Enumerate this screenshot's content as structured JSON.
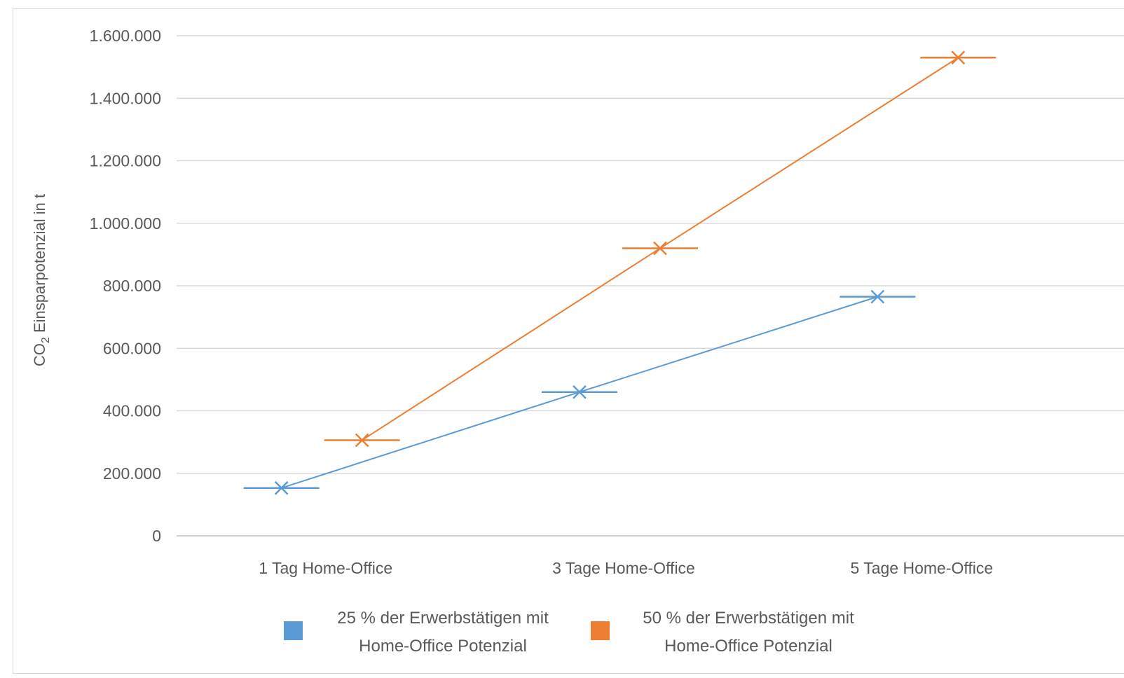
{
  "chart_data": {
    "type": "line",
    "title": "",
    "xlabel": "",
    "ylabel": {
      "prefix": "CO",
      "subscript": "2",
      "suffix": " Einsparpotenzial in t"
    },
    "categories": [
      "1 Tag Home-Office",
      "3 Tage Home-Office",
      "5 Tage Home-Office"
    ],
    "ylim": [
      0,
      1600000
    ],
    "yticks": [
      0,
      200000,
      400000,
      600000,
      800000,
      1000000,
      1200000,
      1400000,
      1600000
    ],
    "ytick_labels": [
      "0",
      "200.000",
      "400.000",
      "600.000",
      "800.000",
      "1.000.000",
      "1.200.000",
      "1.400.000",
      "1.600.000"
    ],
    "grid": true,
    "legend_position": "bottom",
    "series": [
      {
        "name": [
          "25 % der Erwerbstätigen mit",
          "Home-Office Potenzial"
        ],
        "color": "#5b9bd5",
        "values": [
          153000,
          460000,
          765000
        ]
      },
      {
        "name": [
          "50 % der Erwerbstätigen mit",
          "Home-Office Potenzial"
        ],
        "color": "#ed7d31",
        "values": [
          306000,
          920000,
          1530000
        ]
      }
    ]
  }
}
